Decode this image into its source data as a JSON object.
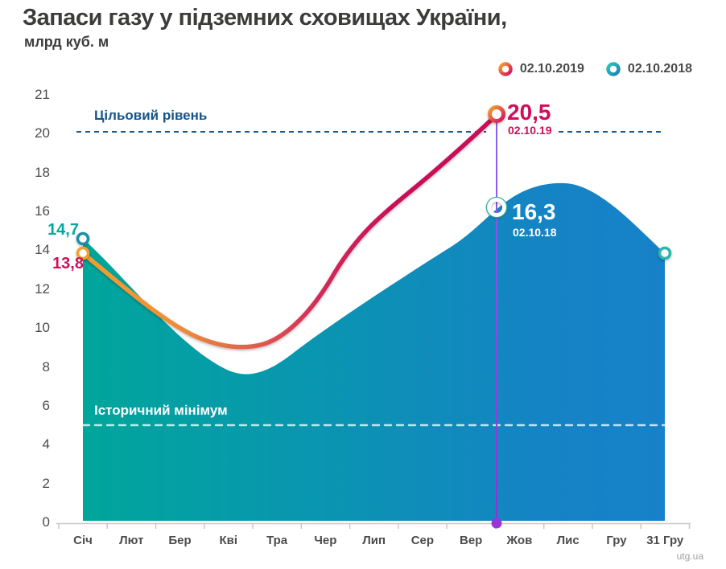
{
  "title": "Запаси газу у підземних сховищах України,",
  "subtitle": "млрд куб. м",
  "source": "utg.ua",
  "legend": [
    {
      "label": "02.10.2019",
      "color_start": "#f6a22b",
      "color_end": "#d41060"
    },
    {
      "label": "02.10.2018",
      "color_start": "#2ec6b8",
      "color_end": "#1a7fc0"
    }
  ],
  "ann": {
    "target_label": "Цільовий рівень",
    "min_label": "Історичний мінімум",
    "start_2018": "14,7",
    "start_2019": "13,8",
    "oct_2019_value": "20,5",
    "oct_2019_date": "02.10.19",
    "oct_2018_value": "16,3",
    "oct_2018_date": "02.10.18"
  },
  "y_axis": [
    "21",
    "20",
    "18",
    "16",
    "14",
    "12",
    "10",
    "8",
    "6",
    "4",
    "2",
    "0"
  ],
  "x_axis": [
    "Січ",
    "Лют",
    "Бер",
    "Кві",
    "Тра",
    "Чер",
    "Лип",
    "Сер",
    "Вер",
    "Жов",
    "Лис",
    "Гру",
    "31 Гру"
  ],
  "colors": {
    "crimson": "#cf0f5b",
    "orange": "#f5a02d",
    "teal": "#00a79b",
    "blue": "#1583c8",
    "navy": "#15548a",
    "purple": "#9a35d6",
    "axis_gray": "#c8c8c8"
  },
  "chart_data": {
    "type": "area",
    "title": "Запаси газу у підземних сховищах України, млрд куб. м",
    "x": [
      "Січ",
      "Лют",
      "Бер",
      "Кві",
      "Тра",
      "Чер",
      "Лип",
      "Сер",
      "Вер",
      "02.10",
      "Жов",
      "Лис",
      "Гру",
      "31 Гру"
    ],
    "series": [
      {
        "name": "02.10.2019",
        "type": "line",
        "values": [
          13.8,
          11.7,
          10.0,
          9.0,
          9.5,
          11.9,
          15.0,
          17.5,
          19.6,
          20.5,
          null,
          null,
          null,
          null
        ],
        "point_labels": {
          "Січ": "13,8",
          "02.10": "20,5"
        }
      },
      {
        "name": "02.10.2018",
        "type": "area",
        "values": [
          14.7,
          12.0,
          9.3,
          7.8,
          8.2,
          9.8,
          11.5,
          13.2,
          14.4,
          16.3,
          16.8,
          17.4,
          16.2,
          13.7
        ],
        "point_labels": {
          "Січ": "14,7",
          "02.10": "16,3",
          "31 Гру": "13,7"
        }
      }
    ],
    "ylim": [
      0,
      21
    ],
    "y_ticks": [
      0,
      2,
      4,
      6,
      8,
      10,
      12,
      14,
      16,
      18,
      20,
      21
    ],
    "reference_lines": [
      {
        "label": "Цільовий рівень",
        "value": 20,
        "style": "dashed",
        "color": "#15548a"
      },
      {
        "label": "Історичний мінімум",
        "value": 5,
        "style": "dashed",
        "color": "#ffffff"
      }
    ],
    "event_marker": {
      "x": "02.10",
      "values": {
        "02.10.2019": 20.5,
        "02.10.2018": 16.3
      }
    },
    "legend_position": "top-right",
    "grid": false
  }
}
